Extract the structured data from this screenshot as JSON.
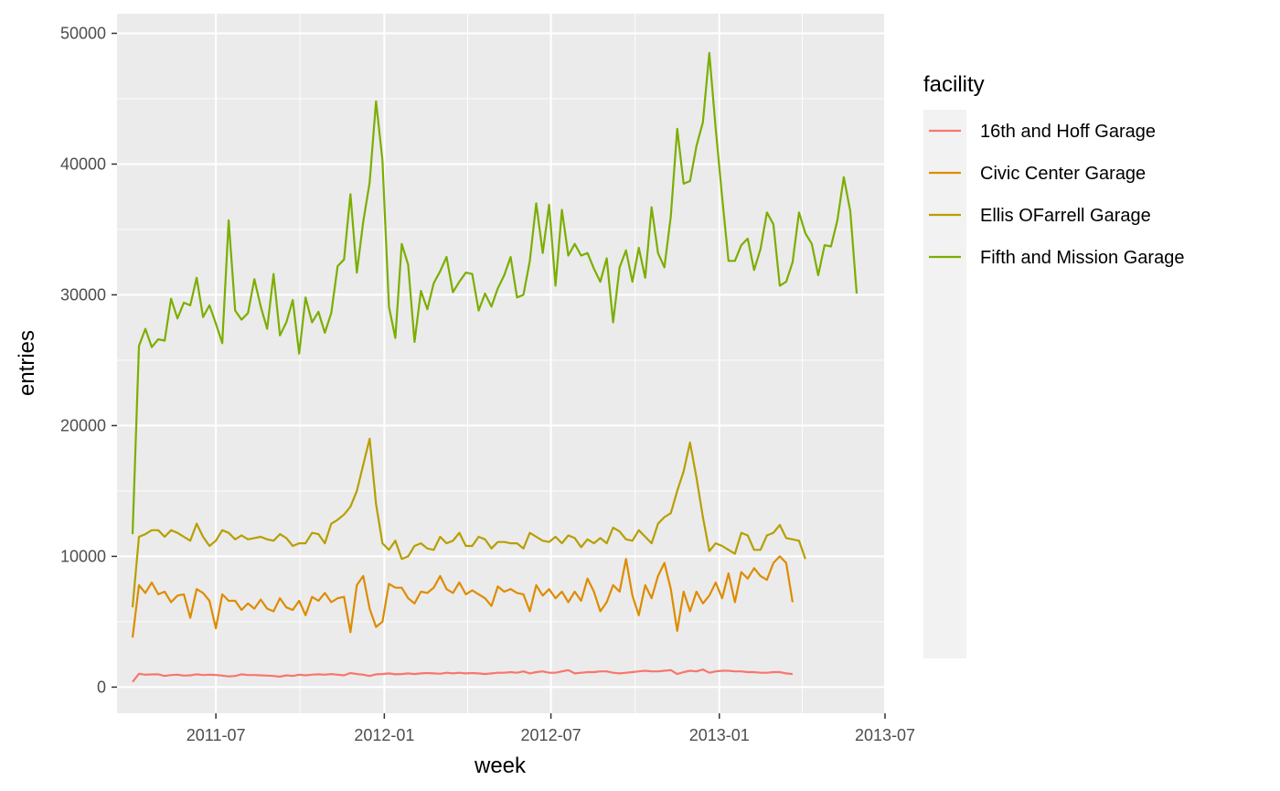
{
  "chart_data": {
    "type": "line",
    "xlabel": "week",
    "ylabel": "entries",
    "legend_title": "facility",
    "legend_position": "right",
    "grid": true,
    "x_start": "2011-04-01",
    "x_step_days": 7,
    "xlim": [
      "2011-03-15",
      "2013-06-30"
    ],
    "ylim": [
      -2000,
      51500
    ],
    "x_ticks": [
      "2011-07",
      "2012-01",
      "2012-07",
      "2013-01",
      "2013-07"
    ],
    "y_ticks": [
      0,
      10000,
      20000,
      30000,
      40000,
      50000
    ],
    "series": [
      {
        "name": "16th and Hoff Garage",
        "color": "#F8766D",
        "values": [
          400,
          1020,
          950,
          970,
          980,
          850,
          920,
          950,
          880,
          900,
          980,
          920,
          950,
          930,
          880,
          820,
          850,
          980,
          920,
          920,
          900,
          880,
          850,
          800,
          900,
          850,
          950,
          900,
          950,
          980,
          950,
          1000,
          950,
          900,
          1080,
          1000,
          950,
          850,
          980,
          1000,
          1050,
          980,
          1000,
          1050,
          1000,
          1050,
          1080,
          1050,
          1020,
          1100,
          1050,
          1100,
          1050,
          1080,
          1050,
          1000,
          1050,
          1100,
          1100,
          1150,
          1100,
          1200,
          1050,
          1150,
          1200,
          1100,
          1100,
          1200,
          1300,
          1050,
          1100,
          1150,
          1150,
          1200,
          1200,
          1100,
          1050,
          1100,
          1150,
          1200,
          1250,
          1200,
          1200,
          1250,
          1300,
          1000,
          1150,
          1250,
          1200,
          1350,
          1100,
          1200,
          1250,
          1250,
          1200,
          1200,
          1150,
          1150,
          1100,
          1100,
          1150,
          1150,
          1050,
          1000
        ]
      },
      {
        "name": "Civic Center Garage",
        "color": "#DE8C00",
        "values": [
          3800,
          7800,
          7200,
          8000,
          7100,
          7300,
          6500,
          7000,
          7100,
          5300,
          7500,
          7200,
          6600,
          4500,
          7100,
          6600,
          6600,
          5900,
          6400,
          6000,
          6700,
          6000,
          5800,
          6800,
          6100,
          5900,
          6600,
          5500,
          6900,
          6600,
          7200,
          6500,
          6800,
          6900,
          4200,
          7800,
          8500,
          6000,
          4600,
          5000,
          7900,
          7600,
          7600,
          6800,
          6400,
          7300,
          7200,
          7600,
          8500,
          7500,
          7200,
          8000,
          7100,
          7400,
          7100,
          6800,
          6200,
          7700,
          7300,
          7500,
          7200,
          7100,
          5800,
          7800,
          7000,
          7500,
          6800,
          7300,
          6500,
          7300,
          6600,
          8300,
          7300,
          5800,
          6500,
          7800,
          7300,
          9800,
          7000,
          5500,
          7800,
          6800,
          8500,
          9500,
          7500,
          4300,
          7300,
          5800,
          7300,
          6400,
          7000,
          8000,
          6800,
          8700,
          6500,
          8800,
          8300,
          9100,
          8500,
          8200,
          9500,
          10000,
          9500,
          6500
        ]
      },
      {
        "name": "Ellis OFarrell Garage",
        "color": "#B79F00",
        "values": [
          6100,
          11500,
          11700,
          12000,
          12000,
          11500,
          12000,
          11800,
          11500,
          11200,
          12500,
          11500,
          10800,
          11200,
          12000,
          11800,
          11300,
          11600,
          11300,
          11400,
          11500,
          11300,
          11200,
          11700,
          11400,
          10800,
          11000,
          11000,
          11800,
          11700,
          11000,
          12500,
          12800,
          13200,
          13800,
          15000,
          17000,
          19000,
          14000,
          11000,
          10500,
          11200,
          9800,
          10000,
          10800,
          11000,
          10600,
          10500,
          11500,
          11000,
          11200,
          11800,
          10800,
          10800,
          11500,
          11300,
          10600,
          11100,
          11100,
          11000,
          11000,
          10600,
          11800,
          11500,
          11200,
          11100,
          11500,
          11000,
          11600,
          11400,
          10700,
          11300,
          11000,
          11400,
          11000,
          12200,
          11900,
          11300,
          11200,
          12000,
          11500,
          11000,
          12500,
          13000,
          13300,
          15000,
          16500,
          18700,
          16000,
          13000,
          10400,
          11000,
          10800,
          10500,
          10200,
          11800,
          11600,
          10500,
          10500,
          11600,
          11800,
          12400,
          11400,
          11300,
          11200,
          9800
        ]
      },
      {
        "name": "Fifth and Mission Garage",
        "color": "#7CAE00",
        "values": [
          11700,
          26100,
          27400,
          26000,
          26600,
          26500,
          29700,
          28200,
          29400,
          29200,
          31300,
          28300,
          29200,
          27800,
          26300,
          35700,
          28800,
          28100,
          28600,
          31200,
          29100,
          27400,
          31600,
          26900,
          27900,
          29600,
          25500,
          29800,
          27900,
          28700,
          27100,
          28600,
          32200,
          32700,
          37700,
          31700,
          35600,
          38600,
          44800,
          40300,
          29100,
          26700,
          33900,
          32300,
          26400,
          30300,
          28900,
          30900,
          31800,
          32900,
          30200,
          31000,
          31700,
          31600,
          28800,
          30100,
          29100,
          30500,
          31500,
          32900,
          29800,
          30000,
          32600,
          37000,
          33200,
          36900,
          30700,
          36500,
          33000,
          33900,
          33000,
          33200,
          32000,
          31000,
          32800,
          27900,
          32100,
          33400,
          31000,
          33600,
          31300,
          36700,
          33200,
          32100,
          36000,
          42700,
          38500,
          38700,
          41400,
          43200,
          48500,
          42700,
          37500,
          32600,
          32600,
          33800,
          34300,
          31900,
          33500,
          36300,
          35400,
          30700,
          31000,
          32500,
          36300,
          34700,
          33900,
          31500,
          33800,
          33700,
          35700,
          39000,
          36400,
          30100
        ]
      }
    ]
  }
}
